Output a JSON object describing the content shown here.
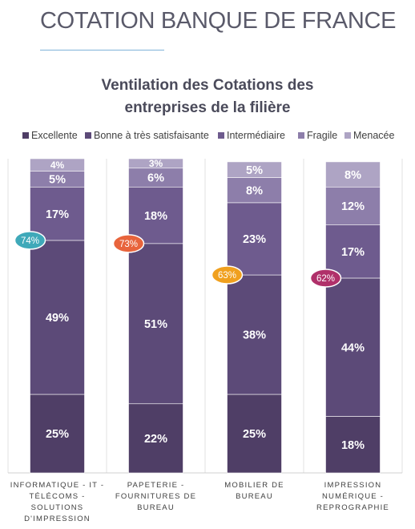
{
  "header": {
    "title": "COTATION BANQUE DE FRANCE"
  },
  "chart_data": {
    "type": "bar",
    "stacked": true,
    "percent": true,
    "title_lines": [
      "Ventilation des Cotations des",
      "entreprises de la filière"
    ],
    "ylim": [
      0,
      100
    ],
    "grid": true,
    "legend_position": "top",
    "categories": [
      [
        "INFORMATIQUE - IT -",
        "TÉLÉCOMS -",
        "SOLUTIONS",
        "D'IMPRESSION"
      ],
      [
        "PAPETERIE -",
        "FOURNITURES DE",
        "BUREAU"
      ],
      [
        "MOBILIER DE",
        "BUREAU"
      ],
      [
        "IMPRESSION",
        "NUMÉRIQUE -",
        "REPROGRAPHIE"
      ]
    ],
    "series": [
      {
        "name": "Excellente",
        "color": "#4f3e66",
        "values": [
          25,
          22,
          25,
          18
        ]
      },
      {
        "name": "Bonne à très satisfaisante",
        "color": "#5c4a78",
        "values": [
          49,
          51,
          38,
          44
        ]
      },
      {
        "name": "Intermédiaire",
        "color": "#6e5b8e",
        "values": [
          17,
          18,
          23,
          17
        ]
      },
      {
        "name": "Fragile",
        "color": "#8d7eaa",
        "values": [
          5,
          6,
          8,
          12
        ]
      },
      {
        "name": "Menacée",
        "color": "#aea4c4",
        "values": [
          4,
          3,
          5,
          8
        ]
      }
    ],
    "callouts": [
      {
        "label": "74%",
        "value": 74,
        "color": "#3fa9b9"
      },
      {
        "label": "73%",
        "value": 73,
        "color": "#e8643c"
      },
      {
        "label": "63%",
        "value": 63,
        "color": "#f0a01e"
      },
      {
        "label": "62%",
        "value": 62,
        "color": "#b0306a"
      }
    ]
  }
}
